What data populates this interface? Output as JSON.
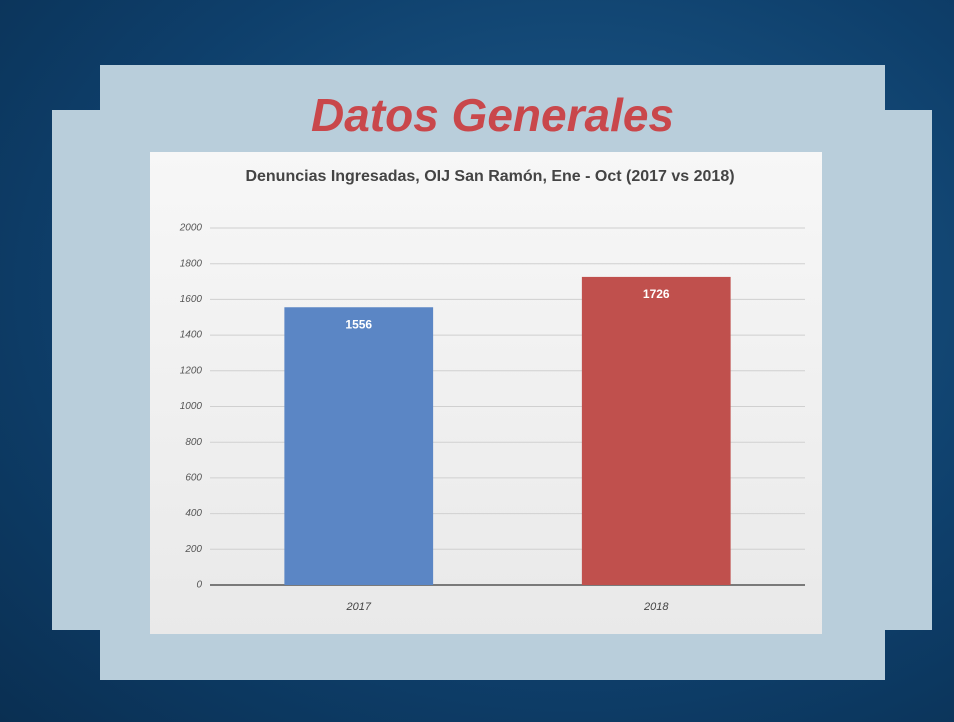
{
  "slide_title": "Datos Generales",
  "chart_data": {
    "type": "bar",
    "title": "Denuncias Ingresadas, OIJ San Ramón, Ene - Oct (2017 vs 2018)",
    "categories": [
      "2017",
      "2018"
    ],
    "values": [
      1556,
      1726
    ],
    "colors": [
      "#5b86c5",
      "#c0504d"
    ],
    "ylim": [
      0,
      2000
    ],
    "yticks": [
      0,
      200,
      400,
      600,
      800,
      1000,
      1200,
      1400,
      1600,
      1800,
      2000
    ],
    "grid": true
  }
}
